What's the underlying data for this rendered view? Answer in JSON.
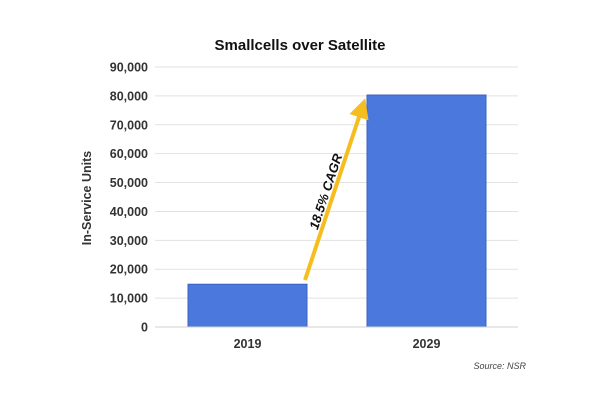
{
  "chart_data": {
    "type": "bar",
    "title": "Smallcells over Satellite",
    "xlabel": "",
    "ylabel": "In-Service Units",
    "categories": [
      "2019",
      "2029"
    ],
    "values": [
      14800,
      80300
    ],
    "ylim": [
      0,
      90000
    ],
    "yticks": [
      0,
      10000,
      20000,
      30000,
      40000,
      50000,
      60000,
      70000,
      80000,
      90000
    ],
    "ytick_labels": [
      "0",
      "10,000",
      "20,000",
      "30,000",
      "40,000",
      "50,000",
      "60,000",
      "70,000",
      "80,000",
      "90,000"
    ],
    "grid": true,
    "legend": "none",
    "annotation": "18.5% CAGR",
    "source": "Source: NSR",
    "colors": {
      "bar": "#4a78dc",
      "bar_edge": "#3b63bd",
      "arrow": "#f5bd1f",
      "grid": "#e2e2e2"
    }
  }
}
